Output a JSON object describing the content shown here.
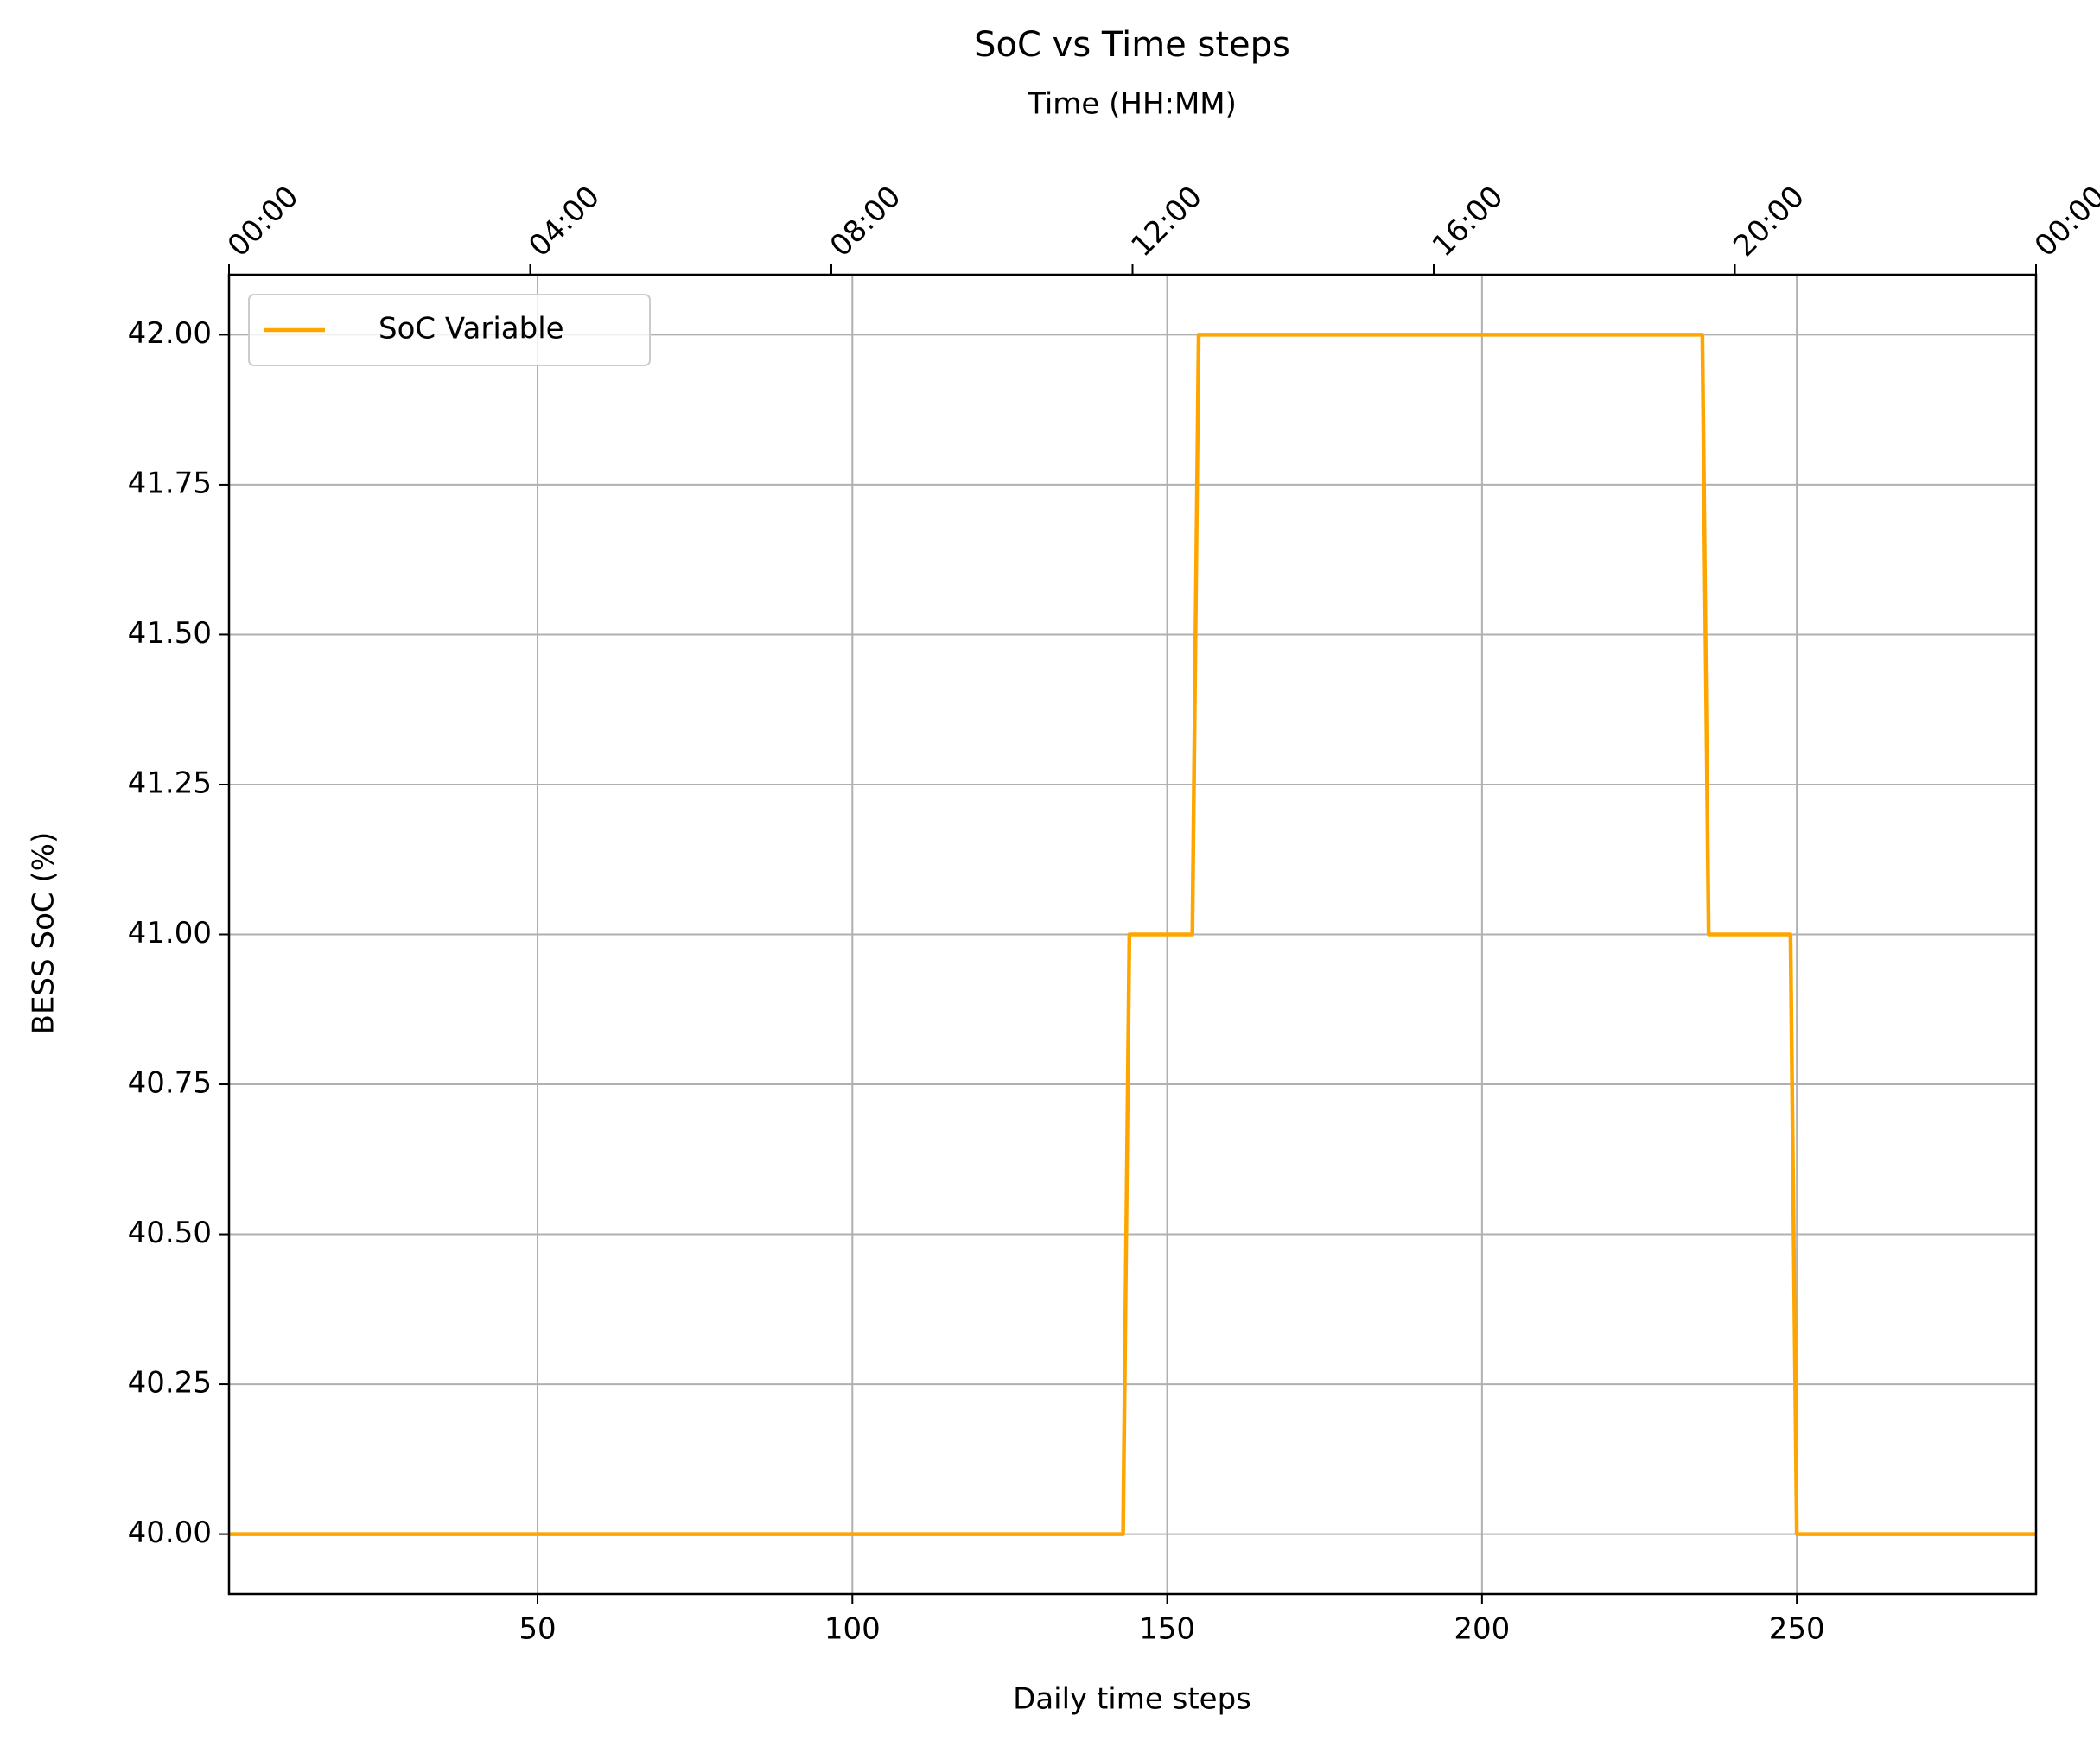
{
  "chart_data": {
    "type": "line",
    "title": "SoC vs Time steps",
    "xlabel": "Daily time steps",
    "ylabel": "BESS SoC (%)",
    "x2label": "Time (HH:MM)",
    "x": [
      1,
      143,
      144,
      154,
      155,
      235,
      236,
      249,
      250,
      288
    ],
    "series": [
      {
        "name": "SoC Variable",
        "color": "#ffa500",
        "values": [
          40,
          40,
          41,
          41,
          42,
          42,
          41,
          41,
          40,
          40
        ]
      }
    ],
    "xlim": [
      1,
      288
    ],
    "xticks": [
      50,
      100,
      150,
      200,
      250
    ],
    "ylim": [
      39.9,
      42.1
    ],
    "yticks": [
      {
        "value": 40,
        "label": "40.00"
      },
      40.25,
      {
        "value": 40.5,
        "label": "40.50"
      },
      40.75,
      {
        "value": 41,
        "label": "41.00"
      },
      41.25,
      {
        "value": 41.5,
        "label": "41.50"
      },
      41.75,
      {
        "value": 42,
        "label": "42.00"
      }
    ],
    "x2lim": [
      0,
      24
    ],
    "x2ticks": [
      {
        "value": 0,
        "label": "00:00"
      },
      {
        "value": 4,
        "label": "04:00"
      },
      {
        "value": 8,
        "label": "08:00"
      },
      {
        "value": 12,
        "label": "12:00"
      },
      {
        "value": 16,
        "label": "16:00"
      },
      {
        "value": 20,
        "label": "20:00"
      },
      {
        "value": 24,
        "label": "00:00"
      }
    ],
    "grid": true,
    "legend": "upper left"
  }
}
